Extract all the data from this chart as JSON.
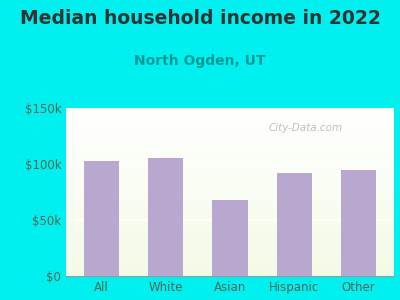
{
  "title": "Median household income in 2022",
  "subtitle": "North Ogden, UT",
  "categories": [
    "All",
    "White",
    "Asian",
    "Hispanic",
    "Other"
  ],
  "values": [
    103000,
    105000,
    68000,
    92000,
    95000
  ],
  "bar_color": "#b8a8d0",
  "background_color": "#00f0f0",
  "title_color": "#333333",
  "subtitle_color": "#009999",
  "axis_label_color": "#556655",
  "ytick_labels": [
    "$0",
    "$50k",
    "$100k",
    "$150k"
  ],
  "ytick_values": [
    0,
    50000,
    100000,
    150000
  ],
  "ylim": [
    0,
    150000
  ],
  "watermark": "City-Data.com",
  "title_fontsize": 13.5,
  "subtitle_fontsize": 10,
  "tick_fontsize": 8.5
}
